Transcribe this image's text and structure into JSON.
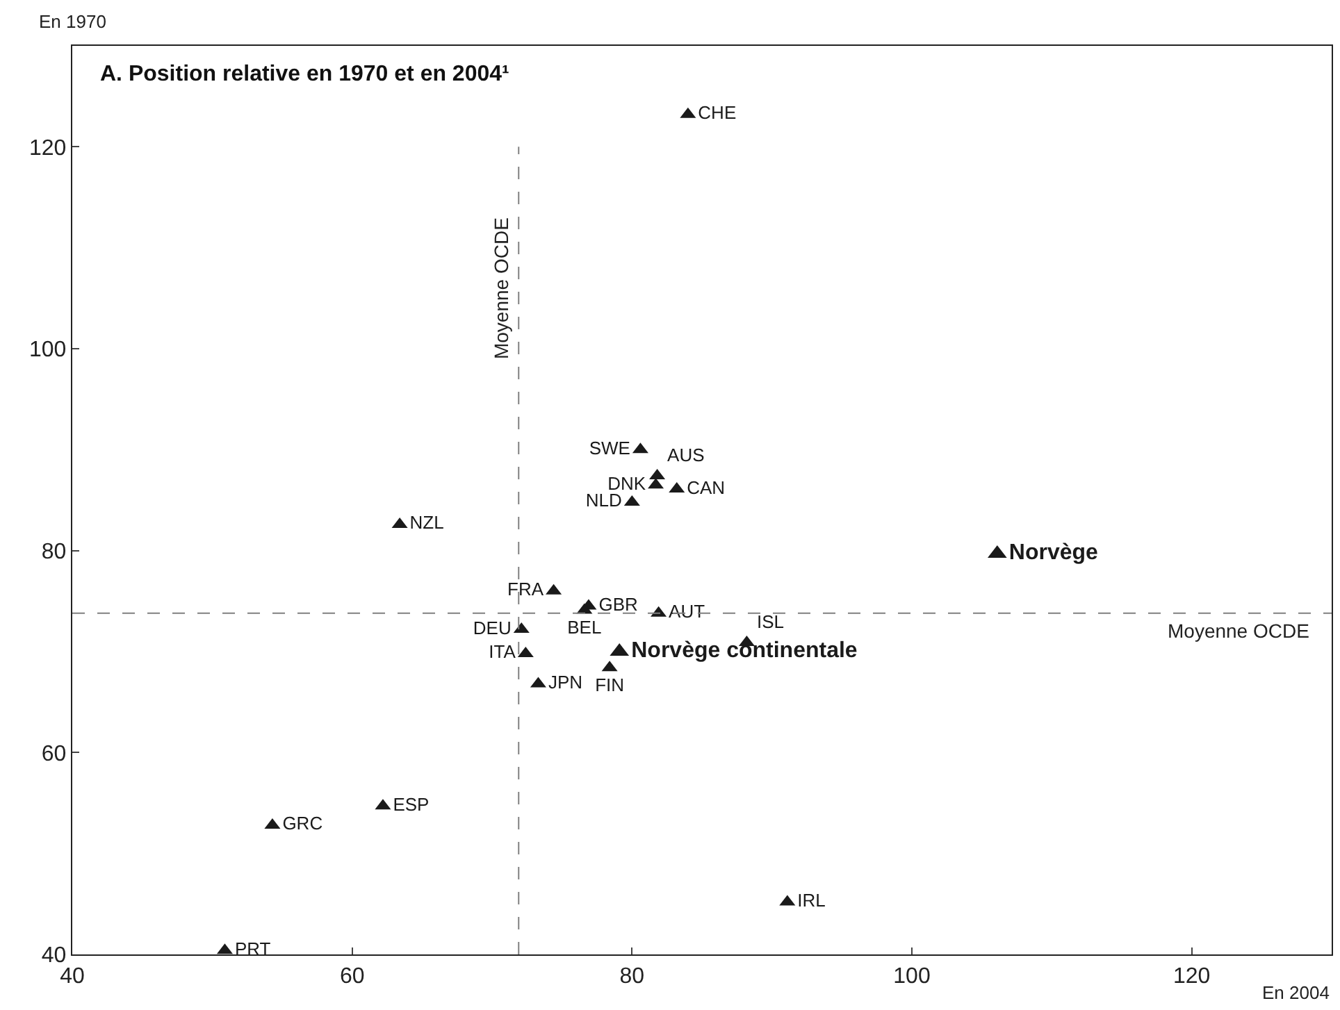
{
  "chart_data": {
    "type": "scatter",
    "title": "A. Position relative en 1970 et en 2004¹",
    "xlabel": "En 2004",
    "ylabel": "En 1970",
    "xlim": [
      40,
      130
    ],
    "ylim": [
      40,
      130
    ],
    "xticks": [
      40,
      60,
      80,
      100,
      120
    ],
    "yticks": [
      40,
      60,
      80,
      100,
      120
    ],
    "marker": "triangle",
    "series": [
      {
        "color": "#1a1a1a",
        "x": [
          84.0,
          80.6,
          81.8,
          81.7,
          83.2,
          80.0,
          74.4,
          76.9,
          76.6,
          81.9,
          72.1,
          72.4,
          78.4,
          88.2,
          73.3,
          63.4,
          62.2,
          54.3,
          91.1,
          50.9
        ],
        "values": [
          123.2,
          90.0,
          87.4,
          86.5,
          86.1,
          84.8,
          76.0,
          74.5,
          74.1,
          73.8,
          72.2,
          69.8,
          68.4,
          70.9,
          66.8,
          82.6,
          54.7,
          52.8,
          45.2,
          40.4
        ],
        "value_labels": [
          "CHE",
          "SWE",
          "AUS",
          "DNK",
          "CAN",
          "NLD",
          "FRA",
          "GBR",
          "BEL",
          "AUT",
          "DEU",
          "ITA",
          "FIN",
          "ISL",
          "JPN",
          "NZL",
          "ESP",
          "GRC",
          "IRL",
          "PRT"
        ]
      },
      {
        "color": "#1a1a1a",
        "x": [
          106.1,
          79.1
        ],
        "values": [
          79.7,
          70.0
        ],
        "value_labels": [
          "Norvège",
          "Norvège continentale"
        ]
      }
    ],
    "ref_lines": [
      {
        "axis": "x",
        "value": 71.9,
        "label": "Moyenne OCDE",
        "color": "#808080",
        "line_style": "dashed"
      },
      {
        "axis": "y",
        "value": 73.8,
        "label": "Moyenne OCDE",
        "color": "#808080",
        "line_style": "dashed"
      }
    ]
  }
}
